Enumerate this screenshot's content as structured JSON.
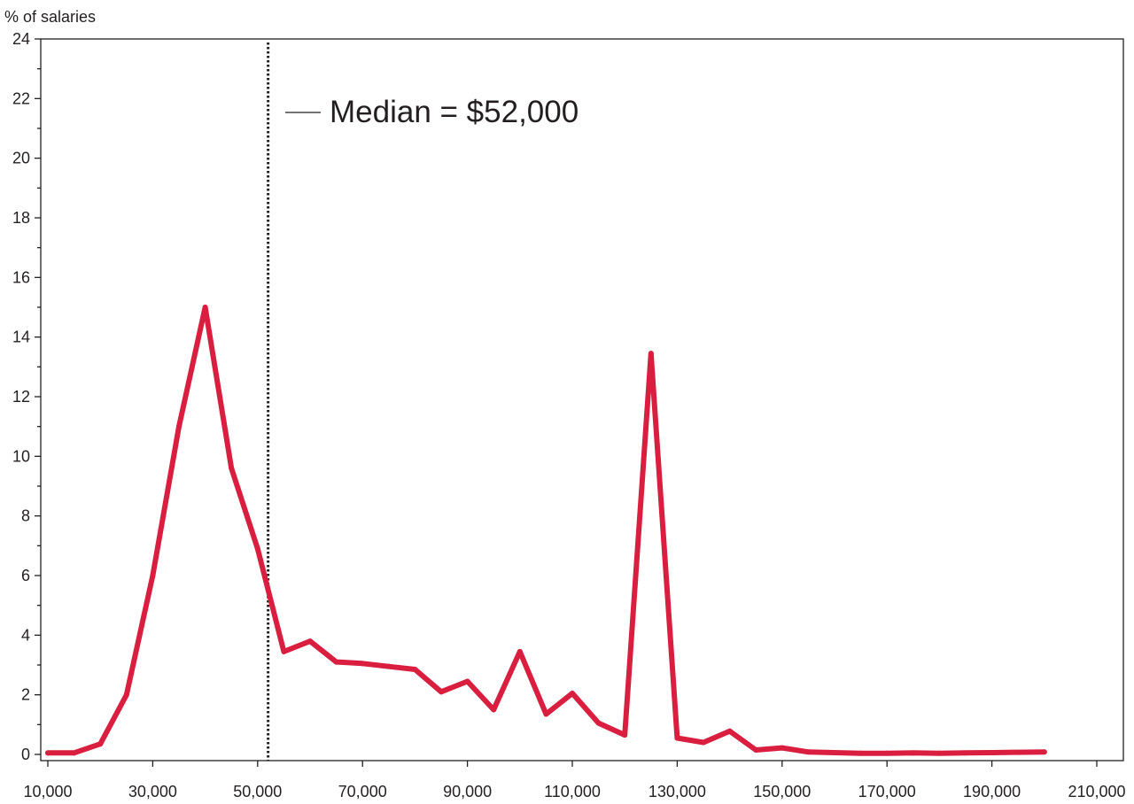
{
  "chart_data": {
    "type": "line",
    "title": "",
    "ylabel": "% of salaries",
    "xlabel": "",
    "xlim": [
      10000,
      210000
    ],
    "ylim": [
      0,
      24
    ],
    "x_ticks": [
      10000,
      30000,
      50000,
      70000,
      90000,
      110000,
      130000,
      150000,
      170000,
      190000,
      210000
    ],
    "x_tick_labels": [
      "10,000",
      "30,000",
      "50,000",
      "70,000",
      "90,000",
      "110,000",
      "130,000",
      "150,000",
      "170,000",
      "190,000",
      "210,000"
    ],
    "y_ticks": [
      0,
      2,
      4,
      6,
      8,
      10,
      12,
      14,
      16,
      18,
      20,
      22,
      24
    ],
    "y_tick_labels": [
      "0",
      "2",
      "4",
      "6",
      "8",
      "10",
      "12",
      "14",
      "16",
      "18",
      "20",
      "22",
      "24"
    ],
    "grid": false,
    "series": [
      {
        "color": "#d91e3f",
        "x": [
          10000,
          15000,
          20000,
          25000,
          30000,
          35000,
          40000,
          45000,
          50000,
          55000,
          60000,
          65000,
          70000,
          75000,
          80000,
          85000,
          90000,
          95000,
          100000,
          105000,
          110000,
          115000,
          120000,
          125000,
          130000,
          135000,
          140000,
          145000,
          150000,
          155000,
          160000,
          165000,
          170000,
          175000,
          180000,
          185000,
          190000,
          195000,
          200000
        ],
        "y": [
          0.05,
          0.05,
          0.35,
          2.0,
          6.0,
          11.0,
          15.0,
          9.6,
          6.9,
          3.45,
          3.8,
          3.1,
          3.05,
          2.95,
          2.85,
          2.1,
          2.45,
          1.5,
          3.45,
          1.35,
          2.05,
          1.05,
          0.65,
          13.45,
          0.55,
          0.4,
          0.78,
          0.15,
          0.22,
          0.08,
          0.06,
          0.04,
          0.04,
          0.05,
          0.04,
          0.05,
          0.06,
          0.07,
          0.08
        ]
      }
    ],
    "median_line": {
      "x": 52000,
      "style": "dotted",
      "color": "#231f20"
    },
    "annotation": {
      "text": "Median = $52,000"
    }
  }
}
